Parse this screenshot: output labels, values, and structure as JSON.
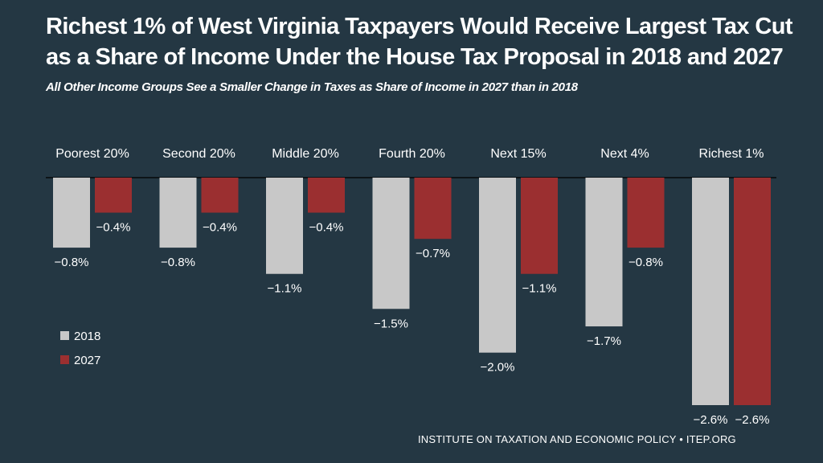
{
  "title": "Richest 1% of West Virginia Taxpayers Would Receive Largest Tax Cut as a Share of Income Under the House Tax Proposal in 2018 and 2027",
  "subtitle": "All Other Income Groups See a Smaller Change in Taxes as Share of Income in 2027 than in 2018",
  "source": "INSTITUTE ON TAXATION AND ECONOMIC POLICY • ITEP.ORG",
  "colors": {
    "background": "#243743",
    "series_2018": "#c8c8c8",
    "series_2027": "#9b2f30",
    "text": "#ffffff",
    "axis": "#0d1418"
  },
  "chart_data": {
    "type": "bar",
    "orientation": "vertical",
    "categories": [
      "Poorest 20%",
      "Second 20%",
      "Middle 20%",
      "Fourth 20%",
      "Next 15%",
      "Next 4%",
      "Richest 1%"
    ],
    "series": [
      {
        "name": "2018",
        "values": [
          -0.8,
          -0.8,
          -1.1,
          -1.5,
          -2.0,
          -1.7,
          -2.6
        ],
        "labels": [
          "−0.8%",
          "−0.8%",
          "−1.1%",
          "−1.5%",
          "−2.0%",
          "−1.7%",
          "−2.6%"
        ]
      },
      {
        "name": "2027",
        "values": [
          -0.4,
          -0.4,
          -0.4,
          -0.7,
          -1.1,
          -0.8,
          -2.6
        ],
        "labels": [
          "−0.4%",
          "−0.4%",
          "−0.4%",
          "−0.7%",
          "−1.1%",
          "−0.8%",
          "−2.6%"
        ]
      }
    ],
    "ylim": [
      -2.6,
      0
    ],
    "legend_position": "left",
    "grid": false,
    "xlabel": "",
    "ylabel": ""
  }
}
